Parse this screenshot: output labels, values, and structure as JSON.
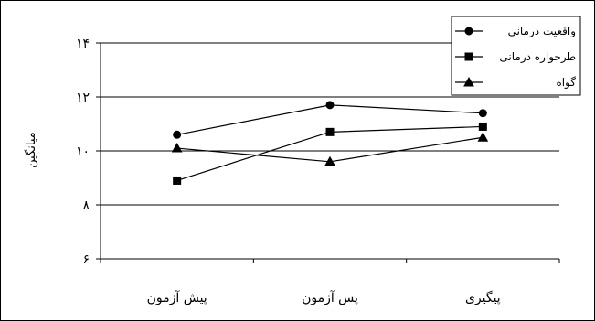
{
  "chart_data": {
    "type": "line",
    "categories": [
      "پیش آزمون",
      "پس آزمون",
      "پیگیری"
    ],
    "ylabel": "میانگین",
    "ylim": [
      6,
      14
    ],
    "yticks": [
      "۶",
      "۸",
      "۱۰",
      "۱۲",
      "۱۴"
    ],
    "ytick_values": [
      6,
      8,
      10,
      12,
      14
    ],
    "grid": "horizontal",
    "legend_position": "top-right",
    "series": [
      {
        "name": "واقعیت درمانی",
        "marker": "circle",
        "values": [
          10.6,
          11.7,
          11.4
        ]
      },
      {
        "name": "طرحواره درمانی",
        "marker": "square",
        "values": [
          8.9,
          10.7,
          10.9
        ]
      },
      {
        "name": "گواه",
        "marker": "triangle",
        "values": [
          10.1,
          9.6,
          10.5
        ]
      }
    ],
    "colors": {
      "lines": "#000000",
      "grid": "#000000",
      "background": "#ffffff"
    }
  }
}
